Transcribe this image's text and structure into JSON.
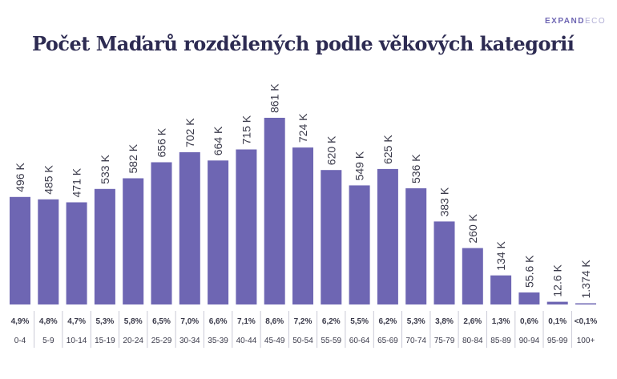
{
  "brand": {
    "name_main": "EXPAND",
    "name_suffix": "ECO"
  },
  "colors": {
    "bar": "#6e66b3",
    "title": "#2d2b52",
    "text": "#3a3a4a",
    "divider": "#c9c9d6"
  },
  "chart_data": {
    "type": "bar",
    "title": "Počet Maďarů rozdělených podle věkových kategorií",
    "categories": [
      "0-4",
      "5-9",
      "10-14",
      "15-19",
      "20-24",
      "25-29",
      "30-34",
      "35-39",
      "40-44",
      "45-49",
      "50-54",
      "55-59",
      "60-64",
      "65-69",
      "70-74",
      "75-79",
      "80-84",
      "85-89",
      "90-94",
      "95-99",
      "100+"
    ],
    "values": [
      496,
      485,
      471,
      533,
      582,
      656,
      702,
      664,
      715,
      861,
      724,
      620,
      549,
      625,
      536,
      383,
      260,
      134,
      55.6,
      12.6,
      1.374
    ],
    "value_labels": [
      "496 K",
      "485 K",
      "471 K",
      "533 K",
      "582 K",
      "656 K",
      "702 K",
      "664 K",
      "715 K",
      "861 K",
      "724 K",
      "620 K",
      "549 K",
      "625 K",
      "536 K",
      "383 K",
      "260 K",
      "134 K",
      "55.6 K",
      "12.6 K",
      "1.374 K"
    ],
    "percent_labels": [
      "4,9%",
      "4,8%",
      "4,7%",
      "5,3%",
      "5,8%",
      "6,5%",
      "7,0%",
      "6,6%",
      "7,1%",
      "8,6%",
      "7,2%",
      "6,2%",
      "5,5%",
      "6,2%",
      "5,3%",
      "3,8%",
      "2,6%",
      "1,3%",
      "0,6%",
      "0,1%",
      "<0,1%"
    ],
    "unit": "K",
    "ylim": [
      0,
      861
    ],
    "grid": false,
    "legend": "none"
  }
}
